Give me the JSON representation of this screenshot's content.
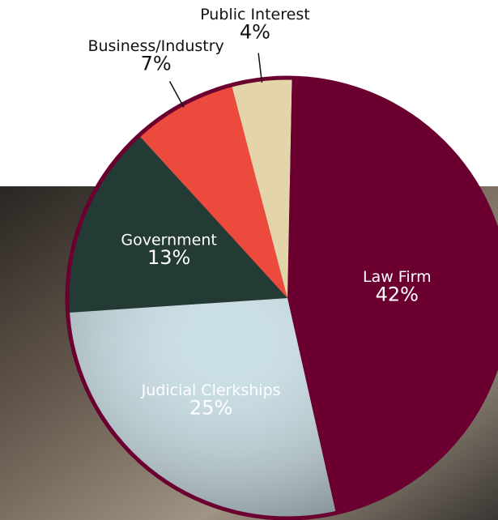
{
  "chart_data": {
    "type": "pie",
    "categories": [
      "Law Firm",
      "Judicial Clerkships",
      "Government",
      "Business/Industry",
      "Public Interest"
    ],
    "values": [
      42,
      25,
      13,
      7,
      4
    ],
    "value_labels": [
      "42%",
      "25%",
      "13%",
      "7%",
      "4%"
    ],
    "colors": [
      "#6b0030",
      "#c9dfe6",
      "#243a35",
      "#eb4a3c",
      "#e3d4aa"
    ]
  }
}
